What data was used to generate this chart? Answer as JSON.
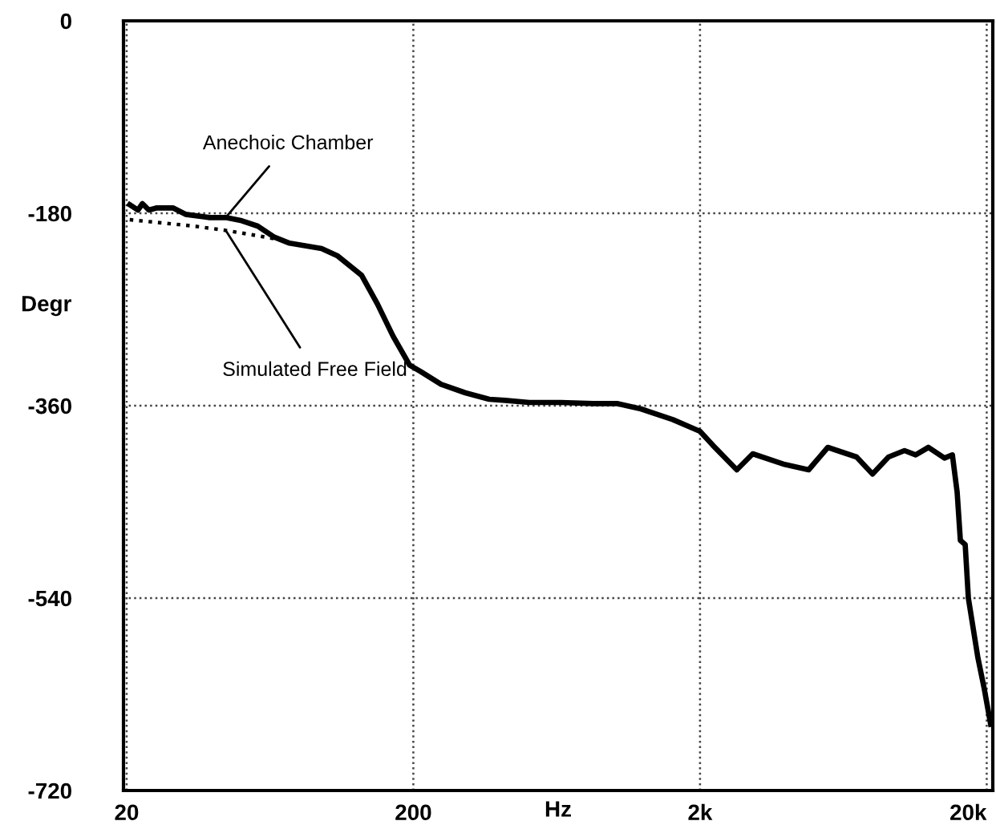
{
  "chart_data": {
    "type": "line",
    "xlabel": "Hz",
    "ylabel": "Degr",
    "log": "x",
    "xlim": [
      19.5,
      21000
    ],
    "ylim": [
      -720,
      0
    ],
    "xticks": [
      20,
      200,
      {
        "value": 2000,
        "label": "2k"
      },
      {
        "value": 20000,
        "label": "20k"
      }
    ],
    "yticks": [
      0,
      -180,
      -360,
      -540,
      -720
    ],
    "grid": true,
    "legend": false,
    "series": [
      {
        "name": "Anechoic Chamber",
        "color": "#000000",
        "line_style": "solid",
        "x": [
          20.5,
          21.9,
          22.7,
          23.9,
          25.5,
          29.0,
          32.1,
          39.0,
          44.3,
          50.4,
          57.3,
          65.1,
          74.0,
          95.7,
          109,
          132,
          150,
          170,
          194,
          212,
          250,
          304,
          368,
          418,
          507,
          655,
          847,
          1026,
          1244,
          1608,
          2000,
          2216,
          2687,
          3054,
          3948,
          4786,
          5582,
          7032,
          7994,
          9088,
          10332,
          11302,
          12522,
          14236,
          15180,
          15773,
          16186,
          16825,
          17259,
          18638,
          19616,
          20640
        ],
        "values": [
          -172,
          -177,
          -171,
          -177,
          -175,
          -175,
          -181,
          -184,
          -184,
          -187,
          -192,
          -202,
          -208,
          -213,
          -220,
          -238,
          -265,
          -295,
          -322,
          -328,
          -340,
          -348,
          -354,
          -355,
          -357,
          -357,
          -358,
          -358,
          -363,
          -373,
          -384,
          -397,
          -420,
          -405,
          -415,
          -420,
          -399,
          -408,
          -424,
          -408,
          -402,
          -406,
          -399,
          -409,
          -406,
          -441,
          -486,
          -490,
          -540,
          -596,
          -625,
          -658
        ]
      },
      {
        "name": "Simulated Free Field",
        "color": "#000000",
        "line_style": "dotted",
        "x": [
          20.5,
          26.5,
          34.3,
          44.3,
          57.3,
          69.4
        ],
        "values": [
          -186,
          -189,
          -192,
          -196,
          -201,
          -205
        ]
      }
    ]
  }
}
